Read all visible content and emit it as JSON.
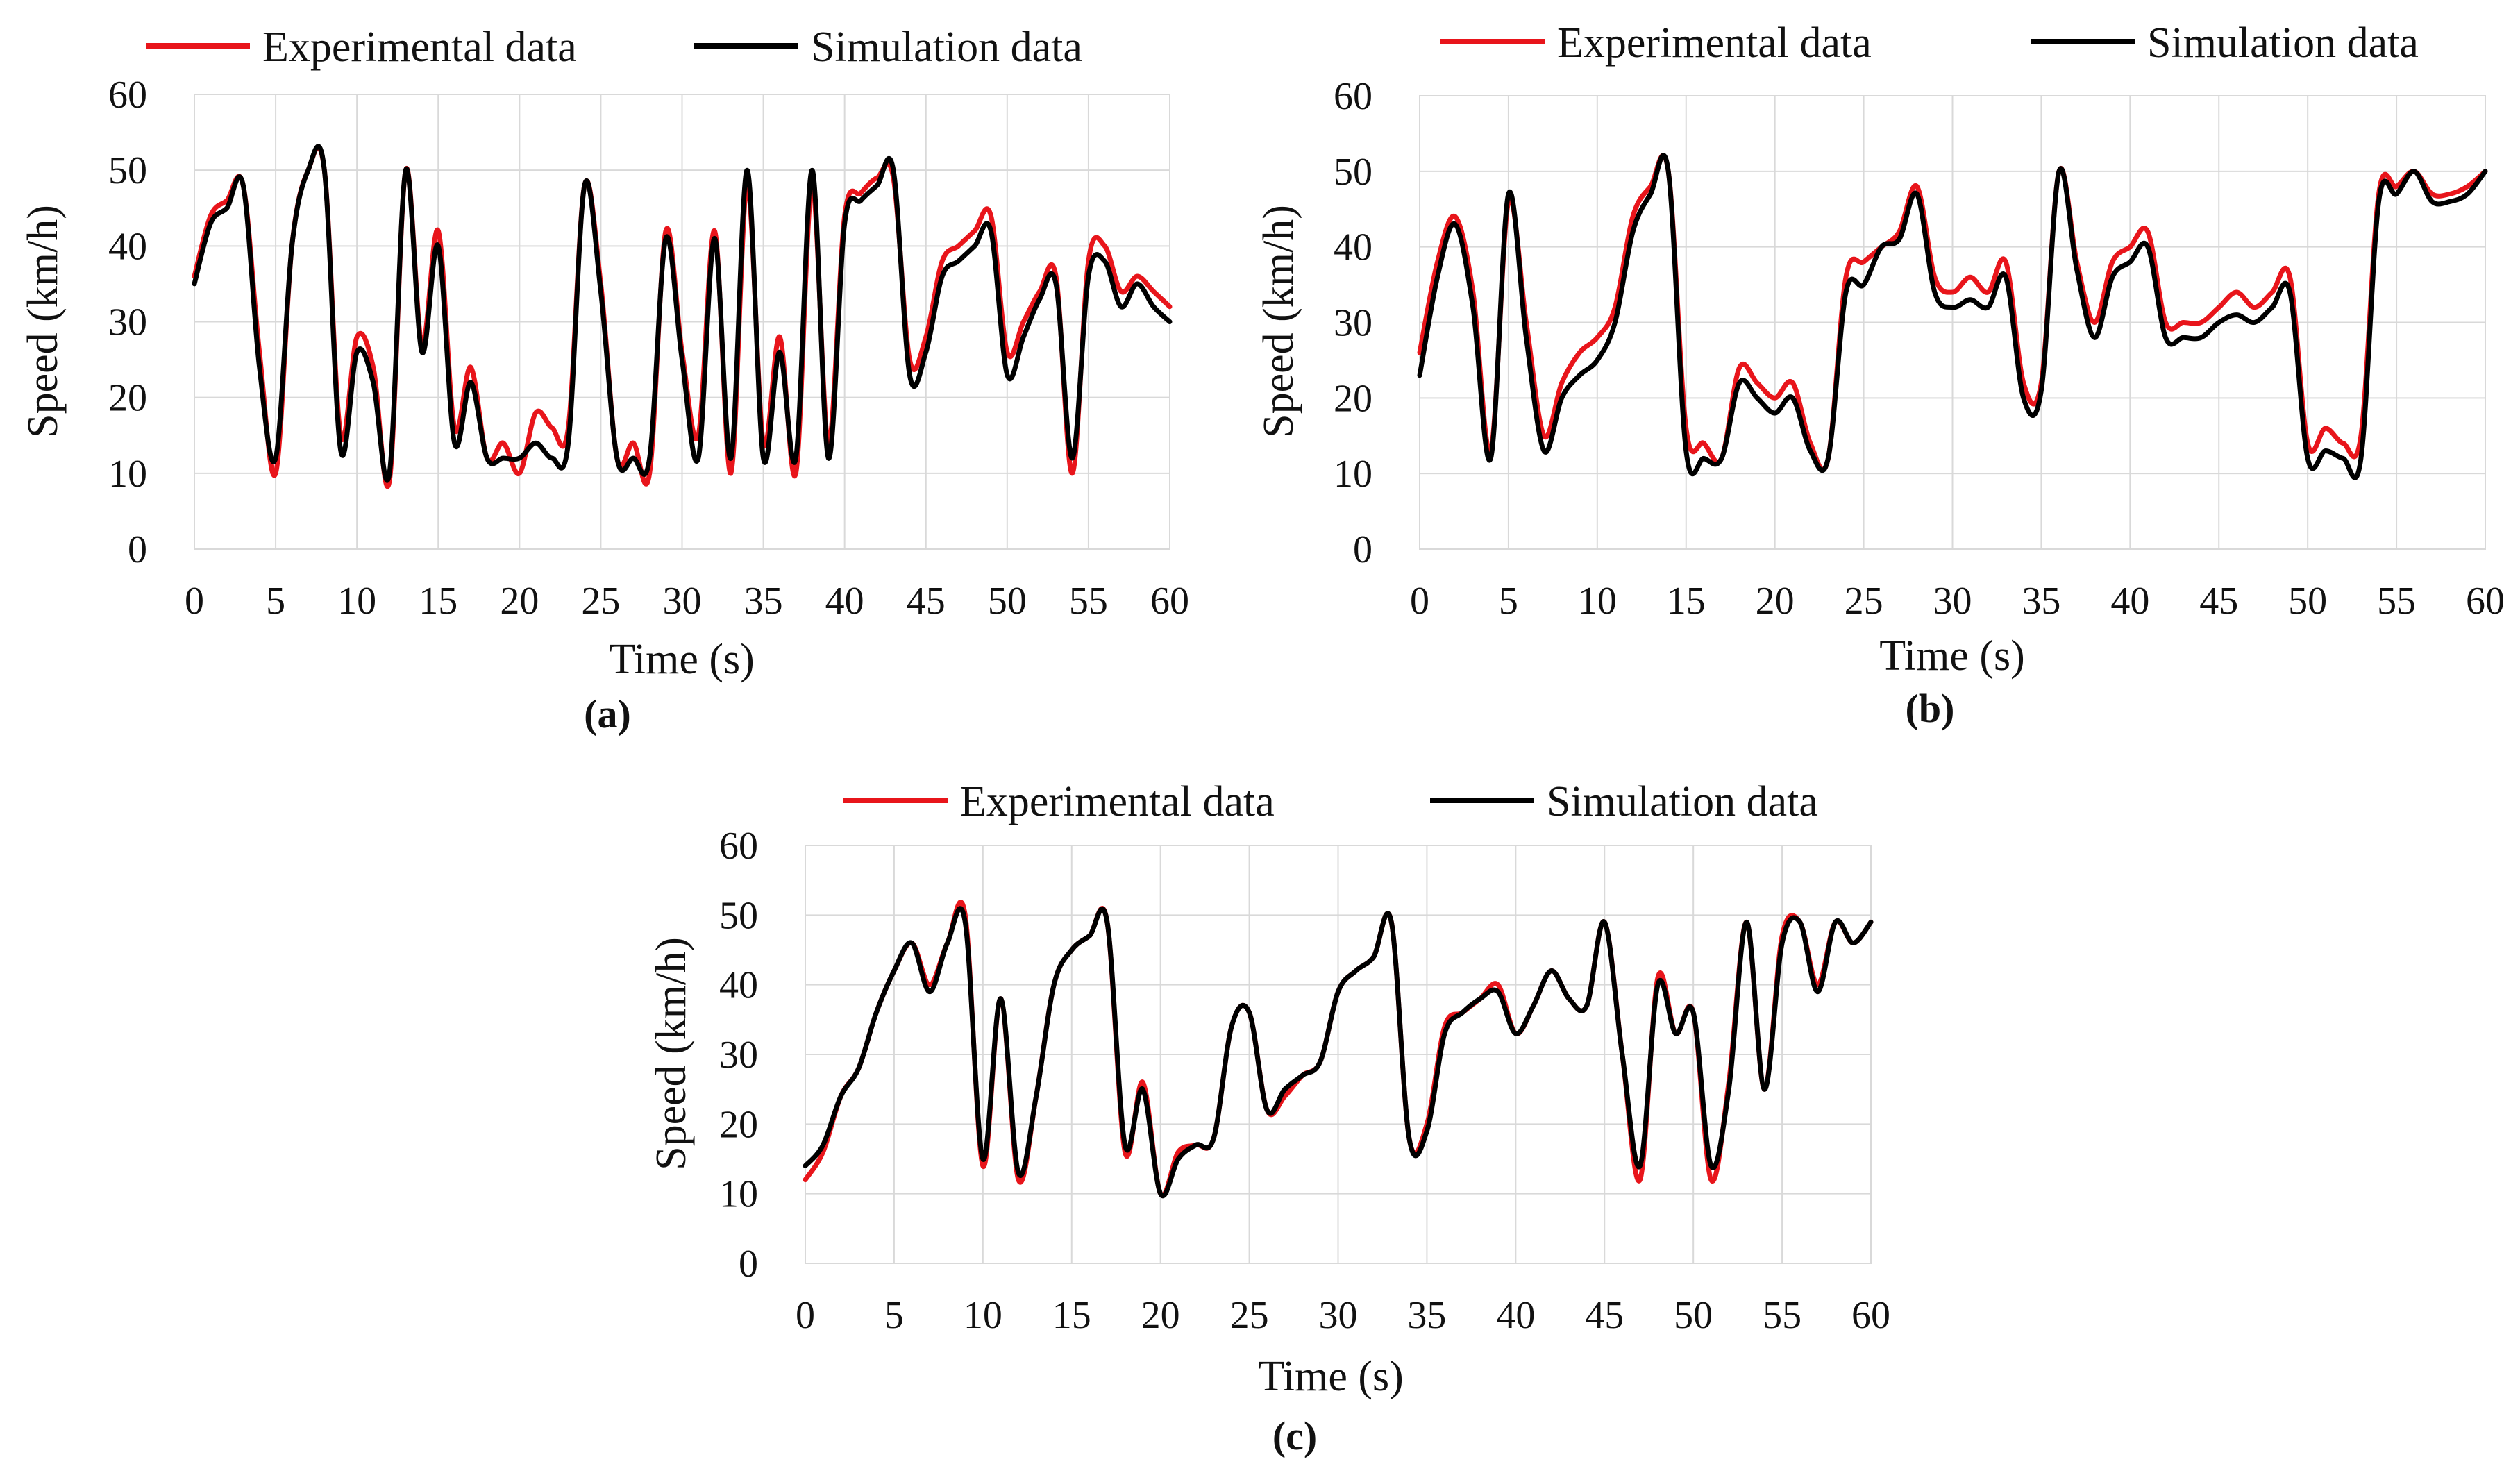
{
  "colors": {
    "experimental": "#e8151b",
    "simulation": "#000000"
  },
  "chart_data": [
    {
      "id": "a",
      "type": "line",
      "panel_label": "(a)",
      "xlabel": "Time (s)",
      "ylabel": "Speed (km/h)",
      "xlim": [
        0,
        60
      ],
      "ylim": [
        0,
        60
      ],
      "xticks": [
        "0",
        "5",
        "10",
        "15",
        "20",
        "25",
        "30",
        "35",
        "40",
        "45",
        "50",
        "55",
        "60"
      ],
      "yticks": [
        "0",
        "10",
        "20",
        "30",
        "40",
        "50",
        "60"
      ],
      "legend": [
        "Experimental data",
        "Simulation data"
      ],
      "series": [
        {
          "name": "Experimental data",
          "x": [
            0,
            1,
            2,
            3,
            4,
            5,
            6,
            7,
            8,
            9,
            10,
            11,
            12,
            13,
            14,
            15,
            16,
            17,
            18,
            19,
            20,
            21,
            22,
            23,
            24,
            25,
            26,
            27,
            28,
            29,
            30,
            31,
            32,
            33,
            34,
            35,
            36,
            37,
            38,
            39,
            40,
            41,
            42,
            43,
            44,
            45,
            46,
            47,
            48,
            49,
            50,
            51,
            52,
            53,
            54,
            55,
            56,
            57,
            58,
            59,
            60
          ],
          "values": [
            36,
            44,
            46,
            48,
            26,
            10,
            40,
            50,
            50,
            15,
            28,
            24,
            9,
            50,
            27,
            42,
            16,
            24,
            12,
            14,
            10,
            18,
            16,
            16,
            48,
            35,
            12,
            14,
            10,
            42,
            26,
            15,
            42,
            10,
            48,
            14,
            28,
            10,
            48,
            14,
            44,
            47,
            49,
            49,
            25,
            28,
            38,
            40,
            42,
            44,
            26,
            30,
            34,
            36,
            10,
            38,
            40,
            34,
            36,
            34,
            32
          ]
        },
        {
          "name": "Simulation data",
          "x": [
            0,
            1,
            2,
            3,
            4,
            5,
            6,
            7,
            8,
            9,
            10,
            11,
            12,
            13,
            14,
            15,
            16,
            17,
            18,
            19,
            20,
            21,
            22,
            23,
            24,
            25,
            26,
            27,
            28,
            29,
            30,
            31,
            32,
            33,
            34,
            35,
            36,
            37,
            38,
            39,
            40,
            41,
            42,
            43,
            44,
            45,
            46,
            47,
            48,
            49,
            50,
            51,
            52,
            53,
            54,
            55,
            56,
            57,
            58,
            59,
            60
          ],
          "values": [
            35,
            43,
            45,
            48,
            24,
            12,
            40,
            50,
            50,
            13,
            26,
            22,
            10,
            50,
            26,
            40,
            14,
            22,
            12,
            12,
            12,
            14,
            12,
            14,
            48,
            34,
            12,
            12,
            12,
            41,
            25,
            12,
            41,
            12,
            50,
            12,
            26,
            12,
            50,
            12,
            43,
            46,
            48,
            50,
            23,
            26,
            36,
            38,
            40,
            42,
            23,
            28,
            33,
            35,
            12,
            36,
            38,
            32,
            35,
            32,
            30
          ]
        }
      ]
    },
    {
      "id": "b",
      "type": "line",
      "panel_label": "(b)",
      "xlabel": "Time (s)",
      "ylabel": "Speed (km/h)",
      "xlim": [
        0,
        60
      ],
      "ylim": [
        0,
        60
      ],
      "xticks": [
        "0",
        "5",
        "10",
        "15",
        "20",
        "25",
        "30",
        "35",
        "40",
        "45",
        "50",
        "55",
        "60"
      ],
      "yticks": [
        "0",
        "10",
        "20",
        "30",
        "40",
        "50",
        "60"
      ],
      "legend": [
        "Experimental data",
        "Simulation data"
      ],
      "series": [
        {
          "name": "Experimental data",
          "x": [
            0,
            1,
            2,
            3,
            4,
            5,
            6,
            7,
            8,
            9,
            10,
            11,
            12,
            13,
            14,
            15,
            16,
            17,
            18,
            19,
            20,
            21,
            22,
            23,
            24,
            25,
            26,
            27,
            28,
            29,
            30,
            31,
            32,
            33,
            34,
            35,
            36,
            37,
            38,
            39,
            40,
            41,
            42,
            43,
            44,
            45,
            46,
            47,
            48,
            49,
            50,
            51,
            52,
            53,
            54,
            55,
            56,
            57,
            58,
            59,
            60
          ],
          "values": [
            26,
            38,
            44,
            34,
            13,
            46,
            30,
            15,
            22,
            26,
            28,
            32,
            44,
            48,
            50,
            16,
            14,
            12,
            24,
            22,
            20,
            22,
            14,
            12,
            36,
            38,
            40,
            42,
            48,
            36,
            34,
            36,
            34,
            38,
            22,
            22,
            50,
            38,
            30,
            38,
            40,
            42,
            30,
            30,
            30,
            32,
            34,
            32,
            34,
            36,
            14,
            16,
            14,
            15,
            47,
            48,
            50,
            47,
            47,
            48,
            50
          ]
        },
        {
          "name": "Simulation data",
          "x": [
            0,
            1,
            2,
            3,
            4,
            5,
            6,
            7,
            8,
            9,
            10,
            11,
            12,
            13,
            14,
            15,
            16,
            17,
            18,
            19,
            20,
            21,
            22,
            23,
            24,
            25,
            26,
            27,
            28,
            29,
            30,
            31,
            32,
            33,
            34,
            35,
            36,
            37,
            38,
            39,
            40,
            41,
            42,
            43,
            44,
            45,
            46,
            47,
            48,
            49,
            50,
            51,
            52,
            53,
            54,
            55,
            56,
            57,
            58,
            59,
            60
          ],
          "values": [
            23,
            36,
            43,
            32,
            12,
            47,
            28,
            13,
            20,
            23,
            25,
            30,
            42,
            47,
            50,
            13,
            12,
            12,
            22,
            20,
            18,
            20,
            13,
            12,
            34,
            35,
            40,
            41,
            47,
            34,
            32,
            33,
            32,
            36,
            20,
            21,
            50,
            37,
            28,
            36,
            38,
            40,
            28,
            28,
            28,
            30,
            31,
            30,
            32,
            34,
            12,
            13,
            12,
            12,
            46,
            47,
            50,
            46,
            46,
            47,
            50
          ]
        }
      ]
    },
    {
      "id": "c",
      "type": "line",
      "panel_label": "(c)",
      "xlabel": "Time (s)",
      "ylabel": "Speed (km/h)",
      "xlim": [
        0,
        60
      ],
      "ylim": [
        0,
        60
      ],
      "xticks": [
        "0",
        "5",
        "10",
        "15",
        "20",
        "25",
        "30",
        "35",
        "40",
        "45",
        "50",
        "55",
        "60"
      ],
      "yticks": [
        "0",
        "10",
        "20",
        "30",
        "40",
        "50",
        "60"
      ],
      "legend": [
        "Experimental data",
        "Simulation data"
      ],
      "series": [
        {
          "name": "Experimental data",
          "x": [
            0,
            1,
            2,
            3,
            4,
            5,
            6,
            7,
            8,
            9,
            10,
            11,
            12,
            13,
            14,
            15,
            16,
            17,
            18,
            19,
            20,
            21,
            22,
            23,
            24,
            25,
            26,
            27,
            28,
            29,
            30,
            31,
            32,
            33,
            34,
            35,
            36,
            37,
            38,
            39,
            40,
            41,
            42,
            43,
            44,
            45,
            46,
            47,
            48,
            49,
            50,
            51,
            52,
            53,
            54,
            55,
            56,
            57,
            58,
            59,
            60
          ],
          "values": [
            12,
            16,
            24,
            28,
            36,
            42,
            46,
            40,
            46,
            50,
            14,
            38,
            12,
            24,
            40,
            45,
            47,
            49,
            16,
            26,
            10,
            16,
            17,
            18,
            34,
            36,
            22,
            24,
            27,
            29,
            39,
            42,
            44,
            49,
            18,
            20,
            34,
            36,
            38,
            40,
            33,
            37,
            42,
            38,
            37,
            49,
            30,
            12,
            41,
            33,
            36,
            12,
            26,
            49,
            25,
            47,
            49,
            40,
            49,
            46,
            49
          ]
        },
        {
          "name": "Simulation data",
          "x": [
            0,
            1,
            2,
            3,
            4,
            5,
            6,
            7,
            8,
            9,
            10,
            11,
            12,
            13,
            14,
            15,
            16,
            17,
            18,
            19,
            20,
            21,
            22,
            23,
            24,
            25,
            26,
            27,
            28,
            29,
            30,
            31,
            32,
            33,
            34,
            35,
            36,
            37,
            38,
            39,
            40,
            41,
            42,
            43,
            44,
            45,
            46,
            47,
            48,
            49,
            50,
            51,
            52,
            53,
            54,
            55,
            56,
            57,
            58,
            59,
            60
          ],
          "values": [
            14,
            17,
            24,
            28,
            36,
            42,
            46,
            39,
            46,
            49,
            15,
            38,
            13,
            24,
            40,
            45,
            47,
            49,
            17,
            25,
            10,
            15,
            17,
            18,
            34,
            36,
            22,
            25,
            27,
            29,
            39,
            42,
            44,
            49,
            18,
            19,
            33,
            36,
            38,
            39,
            33,
            37,
            42,
            38,
            37,
            49,
            30,
            14,
            40,
            33,
            36,
            14,
            25,
            49,
            25,
            46,
            49,
            39,
            49,
            46,
            49
          ]
        }
      ]
    }
  ]
}
